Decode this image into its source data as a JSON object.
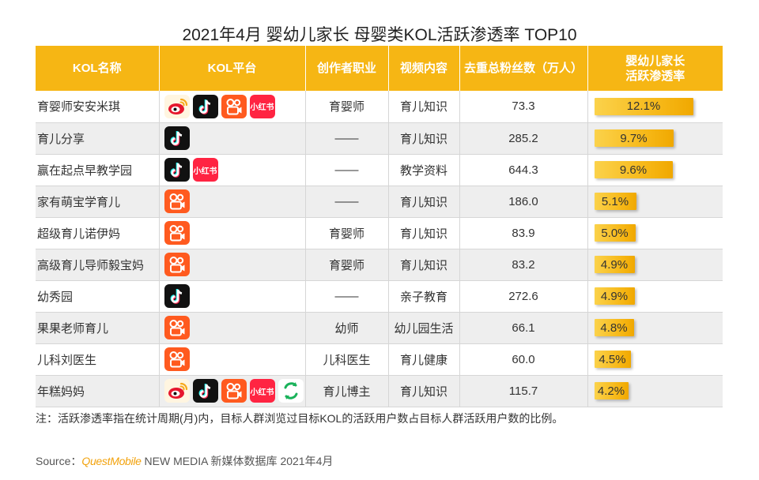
{
  "title": "2021年4月 婴幼儿家长 母婴类KOL活跃渗透率 TOP10",
  "colors": {
    "header": "#f6b614",
    "bar": "#f6b614",
    "brand": "#f2a20c"
  },
  "columns": [
    "KOL名称",
    "KOL平台",
    "创作者职业",
    "视频内容",
    "去重总粉丝数（万人）",
    "婴幼儿家长\n活跃渗透率"
  ],
  "platform_icons": {
    "weibo": "weibo-icon",
    "douyin": "douyin-icon",
    "kuaishou": "kuaishou-icon",
    "xiaohongshu": "xiaohongshu-icon",
    "other": "green-app-icon"
  },
  "xhs_label": "小红书",
  "chart_data": {
    "type": "table",
    "title": "2021年4月 婴幼儿家长 母婴类KOL活跃渗透率 TOP10",
    "bar_scale_max": 12.1,
    "rows": [
      {
        "name": "育婴师安安米琪",
        "platforms": [
          "weibo",
          "douyin",
          "kuaishou",
          "xiaohongshu"
        ],
        "job": "育婴师",
        "content": "育儿知识",
        "fans": "73.3",
        "rate": 12.1,
        "rate_label": "12.1%"
      },
      {
        "name": "育儿分享",
        "platforms": [
          "douyin"
        ],
        "job": "——",
        "content": "育儿知识",
        "fans": "285.2",
        "rate": 9.7,
        "rate_label": "9.7%"
      },
      {
        "name": "赢在起点早教学园",
        "platforms": [
          "douyin",
          "xiaohongshu"
        ],
        "job": "——",
        "content": "教学资料",
        "fans": "644.3",
        "rate": 9.6,
        "rate_label": "9.6%"
      },
      {
        "name": "家有萌宝学育儿",
        "platforms": [
          "kuaishou"
        ],
        "job": "——",
        "content": "育儿知识",
        "fans": "186.0",
        "rate": 5.1,
        "rate_label": "5.1%"
      },
      {
        "name": "超级育儿诺伊妈",
        "platforms": [
          "kuaishou"
        ],
        "job": "育婴师",
        "content": "育儿知识",
        "fans": "83.9",
        "rate": 5.0,
        "rate_label": "5.0%"
      },
      {
        "name": "高级育儿导师毅宝妈",
        "platforms": [
          "kuaishou"
        ],
        "job": "育婴师",
        "content": "育儿知识",
        "fans": "83.2",
        "rate": 4.9,
        "rate_label": "4.9%"
      },
      {
        "name": "幼秀园",
        "platforms": [
          "douyin"
        ],
        "job": "——",
        "content": "亲子教育",
        "fans": "272.6",
        "rate": 4.9,
        "rate_label": "4.9%"
      },
      {
        "name": "果果老师育儿",
        "platforms": [
          "kuaishou"
        ],
        "job": "幼师",
        "content": "幼儿园生活",
        "fans": "66.1",
        "rate": 4.8,
        "rate_label": "4.8%"
      },
      {
        "name": "儿科刘医生",
        "platforms": [
          "kuaishou"
        ],
        "job": "儿科医生",
        "content": "育儿健康",
        "fans": "60.0",
        "rate": 4.5,
        "rate_label": "4.5%"
      },
      {
        "name": "年糕妈妈",
        "platforms": [
          "weibo",
          "douyin",
          "kuaishou",
          "xiaohongshu",
          "other"
        ],
        "job": "育儿博主",
        "content": "育儿知识",
        "fans": "115.7",
        "rate": 4.2,
        "rate_label": "4.2%"
      }
    ]
  },
  "note": "注：活跃渗透率指在统计周期(月)内，目标人群浏览过目标KOL的活跃用户数占目标人群活跃用户数的比例。",
  "source": {
    "prefix": "Source：",
    "brand": "QuestMobile",
    "suffix": " NEW MEDIA 新媒体数据库 2021年4月"
  }
}
